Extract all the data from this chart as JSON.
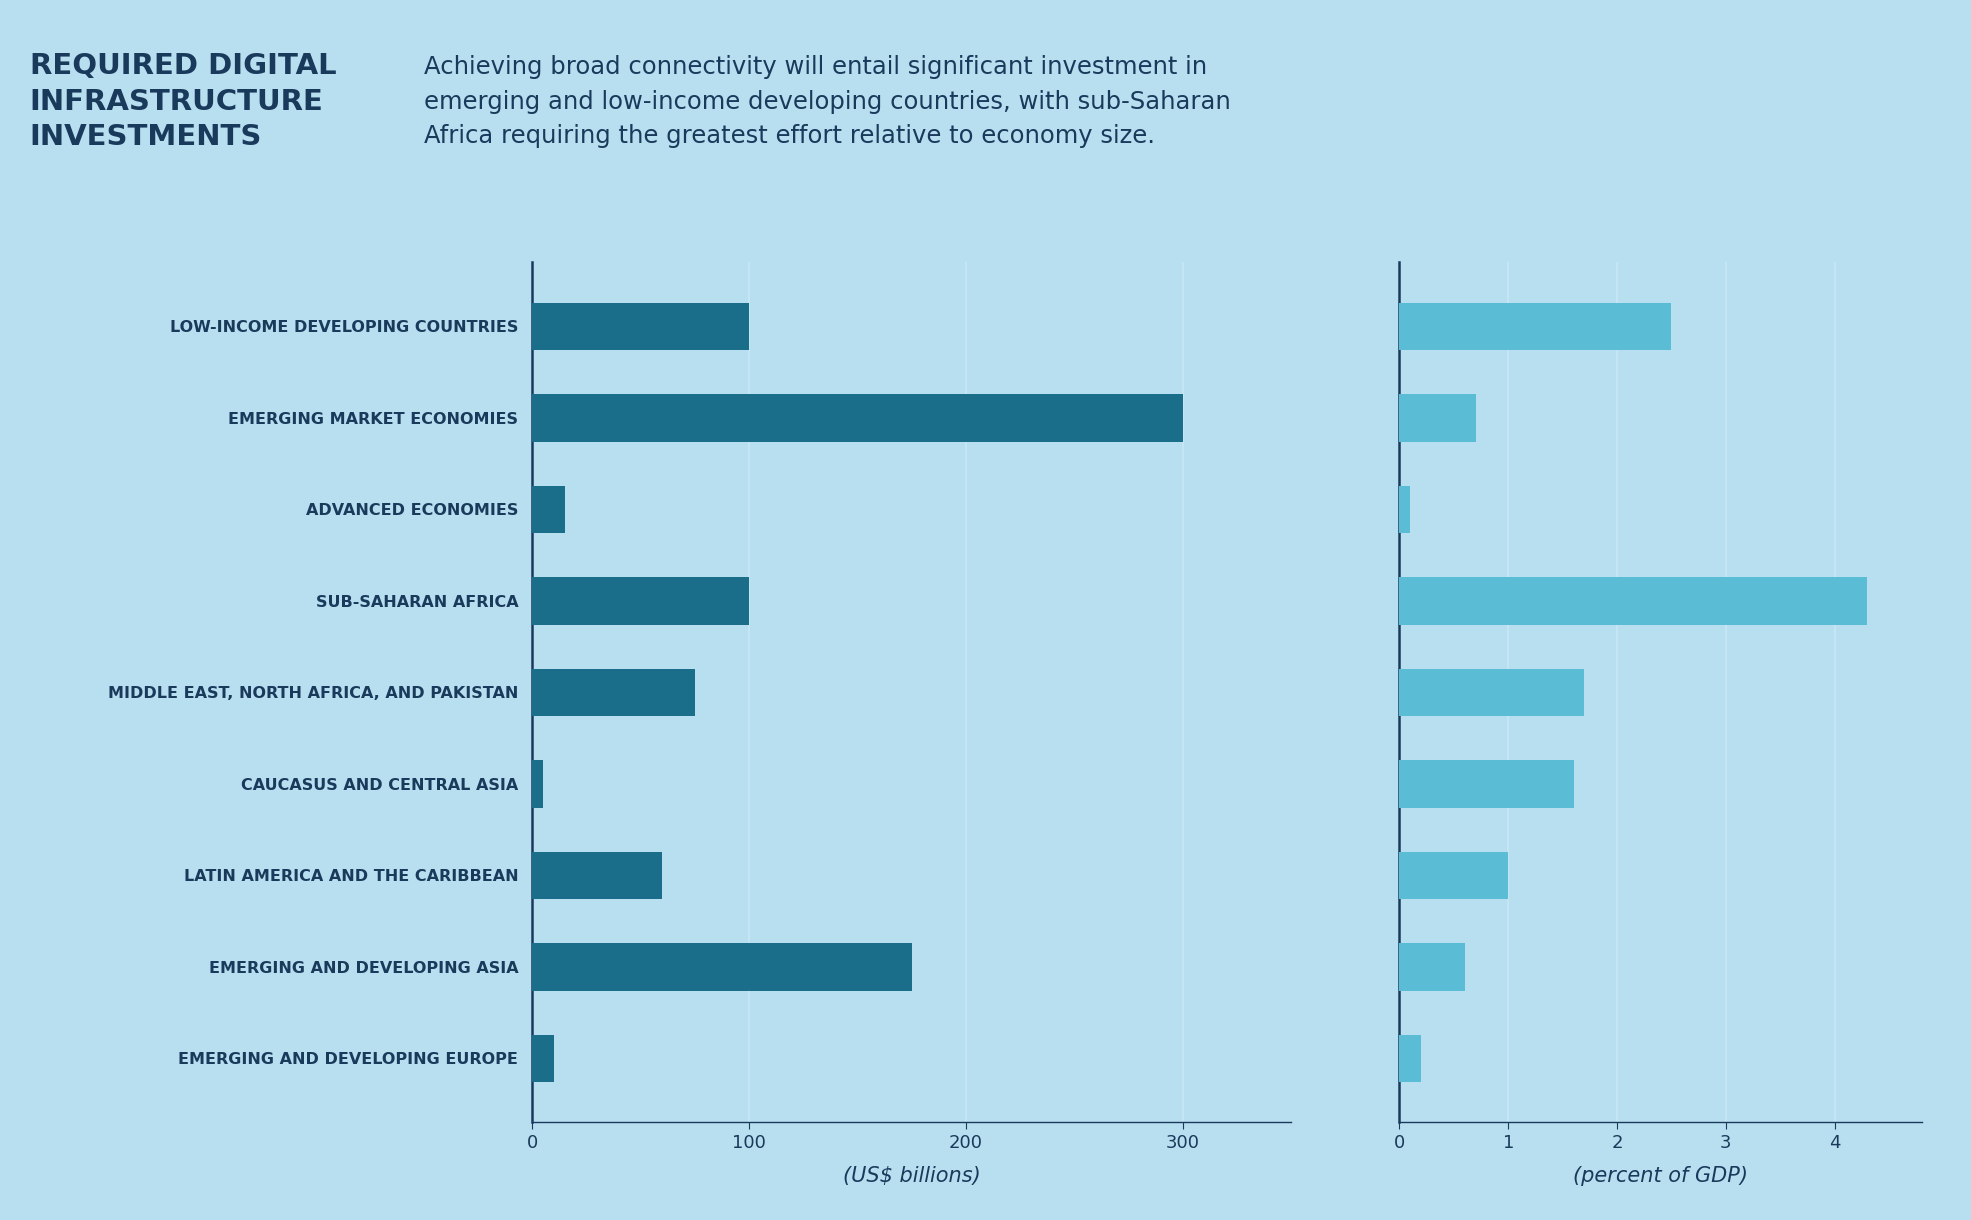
{
  "categories": [
    "LOW-INCOME DEVELOPING COUNTRIES",
    "EMERGING MARKET ECONOMIES",
    "ADVANCED ECONOMIES",
    "SUB-SAHARAN AFRICA",
    "MIDDLE EAST, NORTH AFRICA, AND PAKISTAN",
    "CAUCASUS AND CENTRAL ASIA",
    "LATIN AMERICA AND THE CARIBBEAN",
    "EMERGING AND DEVELOPING ASIA",
    "EMERGING AND DEVELOPING EUROPE"
  ],
  "billions": [
    100,
    300,
    15,
    100,
    75,
    5,
    60,
    175,
    10
  ],
  "pct_gdp": [
    2.5,
    0.7,
    0.1,
    4.3,
    1.7,
    1.6,
    1.0,
    0.6,
    0.2
  ],
  "bar_color_dark": "#1a6e8a",
  "bar_color_light": "#5bbcd6",
  "bg_color": "#b8dff0",
  "header_bg": "#a0d4ec",
  "grid_color": "#c5e5f5",
  "axis_line_color": "#1a3a5c",
  "text_color": "#1a3a5c",
  "title_bold": "REQUIRED DIGITAL\nINFRASTRUCTURE\nINVESTMENTS",
  "subtitle": "Achieving broad connectivity will entail significant investment in\nemerging and low-income developing countries, with sub-Saharan\nAfrica requiring the greatest effort relative to economy size.",
  "xlabel_left": "(US$ billions)",
  "xlabel_right": "(percent of GDP)",
  "xlim_left": [
    0,
    350
  ],
  "xlim_right": [
    0,
    4.8
  ],
  "xticks_left": [
    0,
    100,
    200,
    300
  ],
  "xticks_right": [
    0,
    1,
    2,
    3,
    4
  ]
}
